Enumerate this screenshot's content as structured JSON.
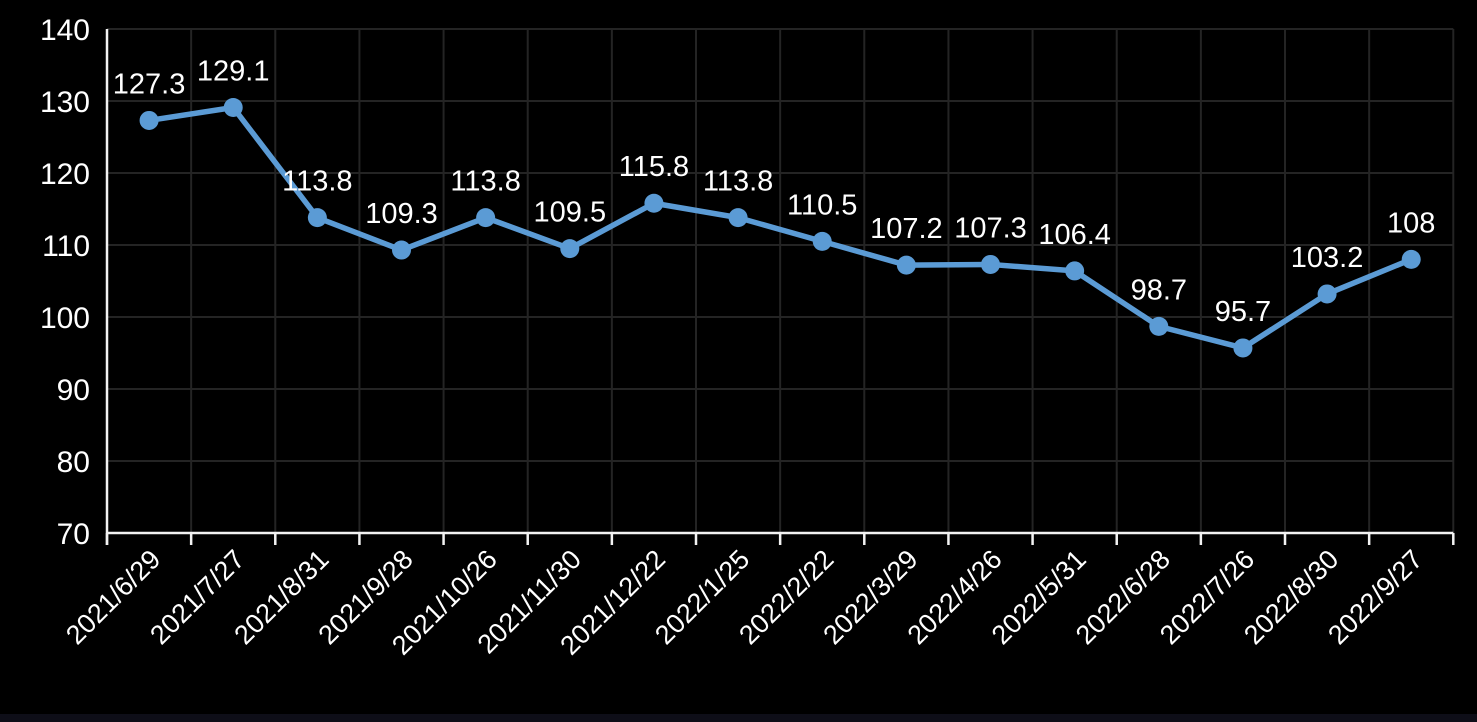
{
  "chart_data": {
    "type": "line",
    "title": "",
    "xlabel": "",
    "ylabel": "",
    "categories": [
      "2021/6/29",
      "2021/7/27",
      "2021/8/31",
      "2021/9/28",
      "2021/10/26",
      "2021/11/30",
      "2021/12/22",
      "2022/1/25",
      "2022/2/22",
      "2022/3/29",
      "2022/4/26",
      "2022/5/31",
      "2022/6/28",
      "2022/7/26",
      "2022/8/30",
      "2022/9/27"
    ],
    "values": [
      127.3,
      129.1,
      113.8,
      109.3,
      113.8,
      109.5,
      115.8,
      113.8,
      110.5,
      107.2,
      107.3,
      106.4,
      98.7,
      95.7,
      103.2,
      108
    ],
    "data_labels": [
      "127.3",
      "129.1",
      "113.8",
      "109.3",
      "113.8",
      "109.5",
      "115.8",
      "113.8",
      "110.5",
      "107.2",
      "107.3",
      "106.4",
      "98.7",
      "95.7",
      "103.2",
      "108"
    ],
    "ylim": [
      70,
      140
    ],
    "yticks": [
      70,
      80,
      90,
      100,
      110,
      120,
      130,
      140
    ],
    "ytick_labels": [
      "70",
      "80",
      "90",
      "100",
      "110",
      "120",
      "130",
      "140"
    ],
    "grid": true,
    "legend_position": "none",
    "x_label_rotation_deg": 45,
    "colors": {
      "background": "#000000",
      "series_line": "#5B9BD5",
      "marker_fill": "#5B9BD5",
      "data_label_text": "#ffffff",
      "tick_label_text": "#ffffff",
      "axis_line": "#f2f2f2",
      "gridline": "#242424",
      "bottom_strip": "#0e0e18"
    }
  }
}
